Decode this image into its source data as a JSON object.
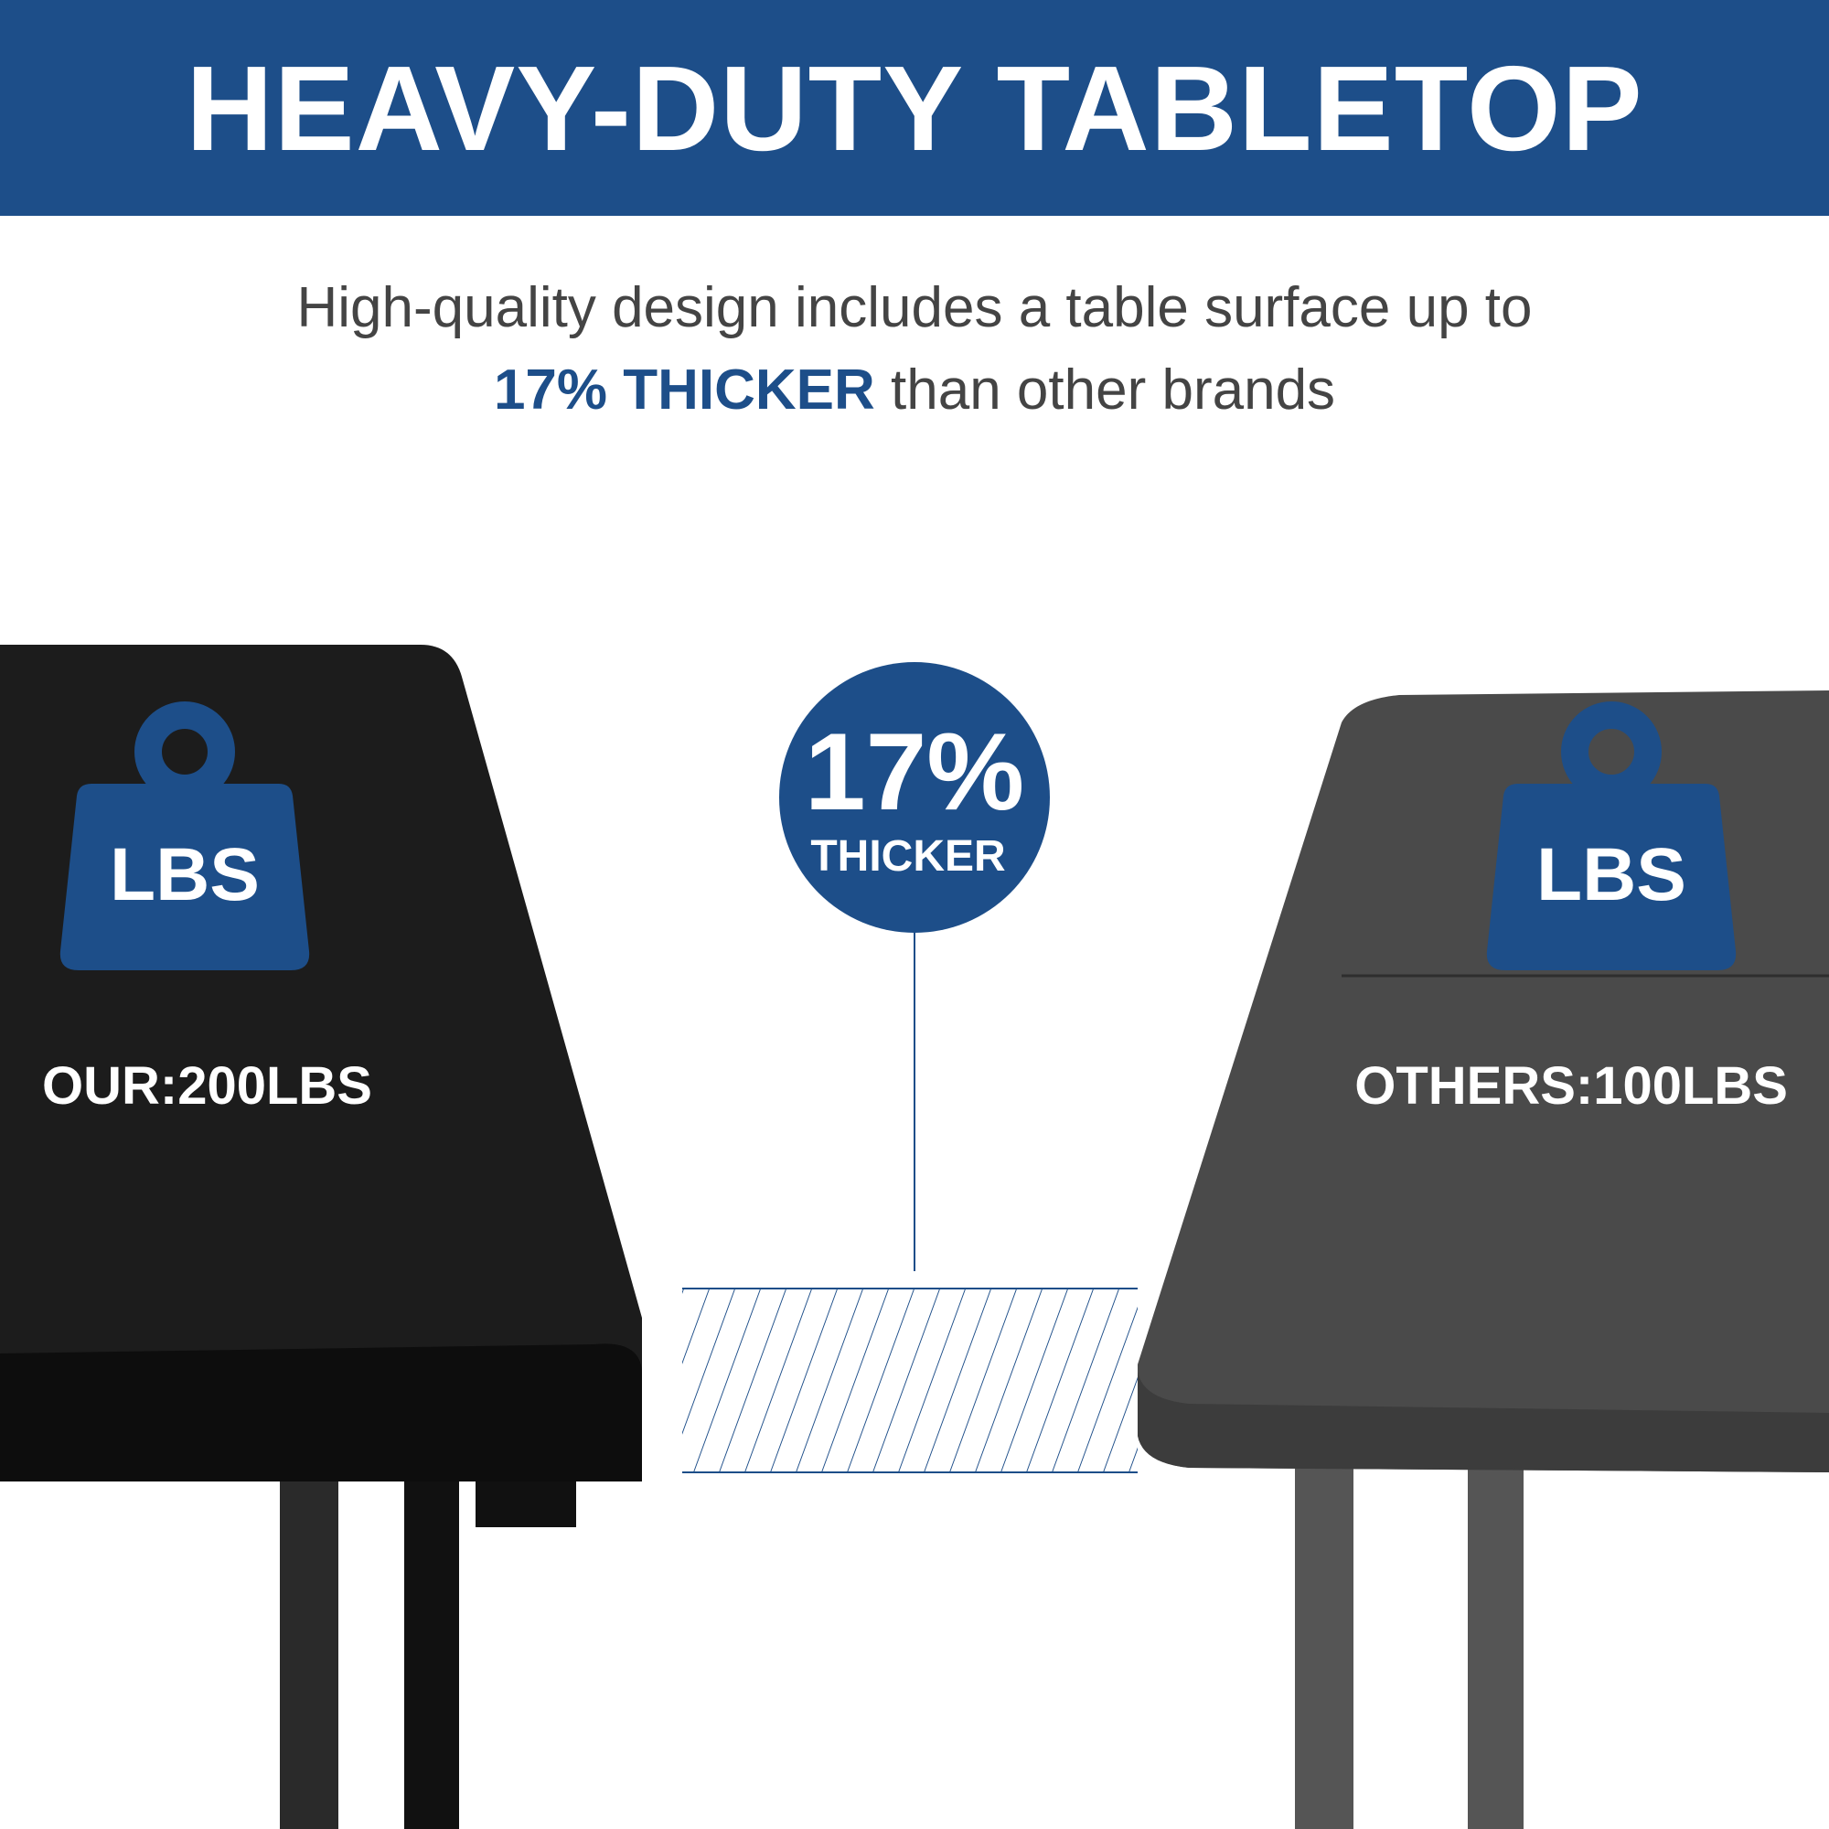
{
  "header": {
    "title": "HEAVY-DUTY TABLETOP"
  },
  "subtitle": {
    "line1": "High-quality design includes a table surface up to",
    "highlight": "17% THICKER",
    "line2_rest": " than other brands"
  },
  "badge": {
    "percent": "17%",
    "label": "THICKER"
  },
  "ours": {
    "icon_label": "LBS",
    "capacity": "OUR:200LBS"
  },
  "others": {
    "icon_label": "LBS",
    "capacity": "OTHERS:100LBS"
  },
  "colors": {
    "brand": "#1d4e89",
    "our_table": "#1c1c1c",
    "other_table": "#4a4a4a"
  }
}
